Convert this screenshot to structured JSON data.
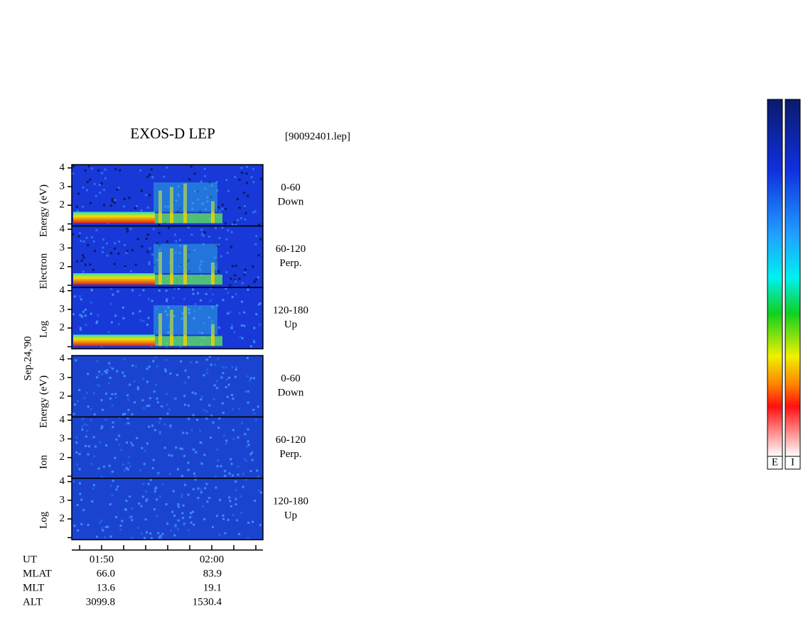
{
  "title": "EXOS-D LEP",
  "file": "[90092401.lep]",
  "date": "Sep.24,'90",
  "groups": [
    {
      "ylabel": [
        "Log",
        "Electron",
        "Energy (eV)"
      ],
      "panels": [
        {
          "label": [
            "0-60",
            "Down"
          ]
        },
        {
          "label": [
            "60-120",
            "Perp."
          ]
        },
        {
          "label": [
            "120-180",
            "Up"
          ]
        }
      ]
    },
    {
      "ylabel": [
        "Log",
        "Ion",
        "Energy (eV)"
      ],
      "panels": [
        {
          "label": [
            "0-60",
            "Down"
          ]
        },
        {
          "label": [
            "60-120",
            "Perp."
          ]
        },
        {
          "label": [
            "120-180",
            "Up"
          ]
        }
      ]
    }
  ],
  "yticks": [
    "2",
    "3",
    "4"
  ],
  "xticks": [
    "01:50",
    "02:00"
  ],
  "ephemeris": [
    {
      "label": "UT",
      "values": []
    },
    {
      "label": "MLAT",
      "values": [
        "66.0",
        "83.9"
      ]
    },
    {
      "label": "MLT",
      "values": [
        "13.6",
        "19.1"
      ]
    },
    {
      "label": "ALT",
      "values": [
        "3099.8",
        "1530.4"
      ]
    }
  ],
  "colorbars": [
    "E",
    "I"
  ]
}
